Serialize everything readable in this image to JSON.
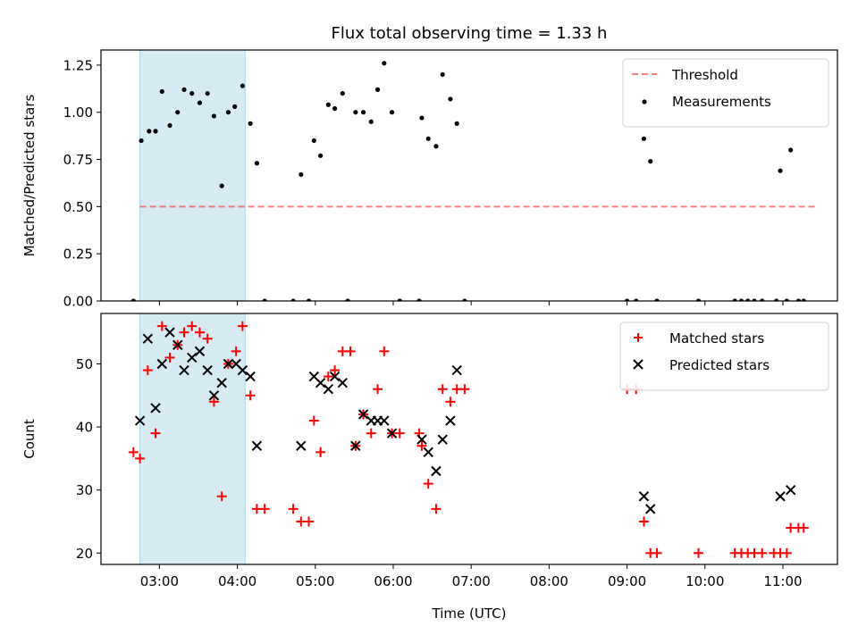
{
  "figure": {
    "title": "Flux total observing time = 1.33 h",
    "xlabel": "Time (UTC)"
  },
  "chart_data": [
    {
      "type": "scatter",
      "panel": "top",
      "ylabel": "Matched/Predicted stars",
      "xlim_hours": [
        2.25,
        11.7
      ],
      "ylim": [
        0,
        1.33
      ],
      "yticks": [
        "0.00",
        "0.25",
        "0.50",
        "0.75",
        "1.00",
        "1.25"
      ],
      "shaded_interval": {
        "x0": "02:45",
        "x1": "04:06",
        "color": "#add8e6"
      },
      "legend_position": "upper right",
      "threshold": {
        "name": "Threshold",
        "y": 0.5,
        "x_start": "02:45",
        "x_end": "11:25",
        "color": "#ff0000",
        "style": "dashed",
        "alpha": 0.5
      },
      "series": [
        {
          "name": "Measurements",
          "marker": "dot",
          "color": "#000000",
          "points": [
            [
              "02:40",
              0.0
            ],
            [
              "02:46",
              0.85
            ],
            [
              "02:52",
              0.9
            ],
            [
              "02:57",
              0.9
            ],
            [
              "03:02",
              1.11
            ],
            [
              "03:08",
              0.93
            ],
            [
              "03:14",
              1.0
            ],
            [
              "03:19",
              1.12
            ],
            [
              "03:25",
              1.1
            ],
            [
              "03:31",
              1.05
            ],
            [
              "03:37",
              1.1
            ],
            [
              "03:42",
              0.98
            ],
            [
              "03:48",
              0.61
            ],
            [
              "03:53",
              1.0
            ],
            [
              "03:58",
              1.03
            ],
            [
              "04:04",
              1.14
            ],
            [
              "04:10",
              0.94
            ],
            [
              "04:15",
              0.73
            ],
            [
              "04:21",
              0.0
            ],
            [
              "04:43",
              0.0
            ],
            [
              "04:49",
              0.67
            ],
            [
              "04:55",
              0.0
            ],
            [
              "04:59",
              0.85
            ],
            [
              "05:04",
              0.77
            ],
            [
              "05:10",
              1.04
            ],
            [
              "05:15",
              1.02
            ],
            [
              "05:21",
              1.1
            ],
            [
              "05:25",
              0.0
            ],
            [
              "05:31",
              1.0
            ],
            [
              "05:37",
              1.0
            ],
            [
              "05:43",
              0.95
            ],
            [
              "05:48",
              1.12
            ],
            [
              "05:53",
              1.26
            ],
            [
              "05:59",
              1.0
            ],
            [
              "06:05",
              0.0
            ],
            [
              "06:20",
              0.0
            ],
            [
              "06:22",
              0.97
            ],
            [
              "06:27",
              0.86
            ],
            [
              "06:33",
              0.82
            ],
            [
              "06:38",
              1.2
            ],
            [
              "06:44",
              1.07
            ],
            [
              "06:49",
              0.94
            ],
            [
              "06:55",
              0.0
            ],
            [
              "09:00",
              0.0
            ],
            [
              "09:07",
              0.0
            ],
            [
              "09:13",
              0.86
            ],
            [
              "09:18",
              0.74
            ],
            [
              "09:23",
              0.0
            ],
            [
              "09:55",
              0.0
            ],
            [
              "10:23",
              0.0
            ],
            [
              "10:28",
              0.0
            ],
            [
              "10:33",
              0.0
            ],
            [
              "10:38",
              0.0
            ],
            [
              "10:44",
              0.0
            ],
            [
              "10:55",
              0.0
            ],
            [
              "10:58",
              0.69
            ],
            [
              "11:03",
              0.0
            ],
            [
              "11:06",
              0.8
            ],
            [
              "11:12",
              0.0
            ],
            [
              "11:16",
              0.0
            ]
          ]
        }
      ]
    },
    {
      "type": "scatter",
      "panel": "bottom",
      "ylabel": "Count",
      "xlim_hours": [
        2.25,
        11.7
      ],
      "ylim": [
        18.2,
        58.0
      ],
      "yticks": [
        "20",
        "30",
        "40",
        "50"
      ],
      "xticks": [
        "03:00",
        "04:00",
        "05:00",
        "06:00",
        "07:00",
        "08:00",
        "09:00",
        "10:00",
        "11:00"
      ],
      "shaded_interval": {
        "x0": "02:45",
        "x1": "04:06",
        "color": "#add8e6"
      },
      "legend_position": "upper right",
      "series": [
        {
          "name": "Matched stars",
          "marker": "plus",
          "color": "#ff0000",
          "points": [
            [
              "02:40",
              36
            ],
            [
              "02:45",
              35
            ],
            [
              "02:51",
              49
            ],
            [
              "02:57",
              39
            ],
            [
              "03:02",
              56
            ],
            [
              "03:08",
              51
            ],
            [
              "03:14",
              53
            ],
            [
              "03:19",
              55
            ],
            [
              "03:25",
              56
            ],
            [
              "03:31",
              55
            ],
            [
              "03:37",
              54
            ],
            [
              "03:42",
              44
            ],
            [
              "03:48",
              29
            ],
            [
              "03:53",
              50
            ],
            [
              "03:59",
              52
            ],
            [
              "04:04",
              56
            ],
            [
              "04:10",
              45
            ],
            [
              "04:15",
              27
            ],
            [
              "04:21",
              27
            ],
            [
              "04:43",
              27
            ],
            [
              "04:49",
              25
            ],
            [
              "04:55",
              25
            ],
            [
              "04:59",
              41
            ],
            [
              "05:04",
              36
            ],
            [
              "05:10",
              48
            ],
            [
              "05:15",
              49
            ],
            [
              "05:21",
              52
            ],
            [
              "05:27",
              52
            ],
            [
              "05:31",
              37
            ],
            [
              "05:37",
              42
            ],
            [
              "05:43",
              39
            ],
            [
              "05:48",
              46
            ],
            [
              "05:53",
              52
            ],
            [
              "05:59",
              39
            ],
            [
              "06:05",
              39
            ],
            [
              "06:20",
              39
            ],
            [
              "06:22",
              37
            ],
            [
              "06:27",
              31
            ],
            [
              "06:33",
              27
            ],
            [
              "06:38",
              46
            ],
            [
              "06:44",
              44
            ],
            [
              "06:49",
              46
            ],
            [
              "06:55",
              46
            ],
            [
              "09:00",
              46
            ],
            [
              "09:07",
              46
            ],
            [
              "09:13",
              25
            ],
            [
              "09:18",
              20
            ],
            [
              "09:23",
              20
            ],
            [
              "09:55",
              20
            ],
            [
              "10:23",
              20
            ],
            [
              "10:28",
              20
            ],
            [
              "10:33",
              20
            ],
            [
              "10:38",
              20
            ],
            [
              "10:44",
              20
            ],
            [
              "10:53",
              20
            ],
            [
              "10:58",
              20
            ],
            [
              "11:03",
              20
            ],
            [
              "11:06",
              24
            ],
            [
              "11:12",
              24
            ],
            [
              "11:16",
              24
            ]
          ]
        },
        {
          "name": "Predicted stars",
          "marker": "x",
          "color": "#000000",
          "points": [
            [
              "02:45",
              41
            ],
            [
              "02:51",
              54
            ],
            [
              "02:57",
              43
            ],
            [
              "03:02",
              50
            ],
            [
              "03:08",
              55
            ],
            [
              "03:14",
              53
            ],
            [
              "03:19",
              49
            ],
            [
              "03:25",
              51
            ],
            [
              "03:31",
              52
            ],
            [
              "03:37",
              49
            ],
            [
              "03:42",
              45
            ],
            [
              "03:48",
              47
            ],
            [
              "03:53",
              50
            ],
            [
              "03:59",
              50
            ],
            [
              "04:04",
              49
            ],
            [
              "04:10",
              48
            ],
            [
              "04:15",
              37
            ],
            [
              "04:49",
              37
            ],
            [
              "04:59",
              48
            ],
            [
              "05:04",
              47
            ],
            [
              "05:10",
              46
            ],
            [
              "05:15",
              48
            ],
            [
              "05:21",
              47
            ],
            [
              "05:31",
              37
            ],
            [
              "05:37",
              42
            ],
            [
              "05:43",
              41
            ],
            [
              "05:48",
              41
            ],
            [
              "05:53",
              41
            ],
            [
              "05:59",
              39
            ],
            [
              "06:22",
              38
            ],
            [
              "06:27",
              36
            ],
            [
              "06:33",
              33
            ],
            [
              "06:38",
              38
            ],
            [
              "06:44",
              41
            ],
            [
              "06:49",
              49
            ],
            [
              "09:13",
              29
            ],
            [
              "09:18",
              27
            ],
            [
              "10:58",
              29
            ],
            [
              "11:06",
              30
            ]
          ]
        }
      ]
    }
  ]
}
